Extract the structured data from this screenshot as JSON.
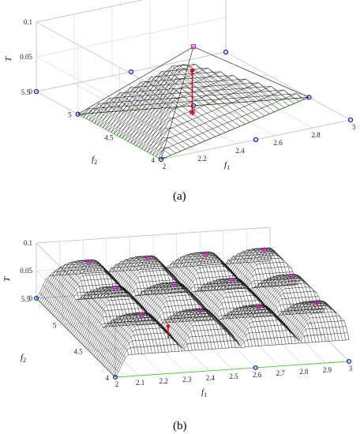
{
  "chart_data": [
    {
      "type": "surface3d",
      "caption": "(a)",
      "xlabel": "f",
      "xlabel_sub": "1",
      "ylabel": "f",
      "ylabel_sub": "2",
      "zlabel": "T",
      "xlim": [
        2,
        3
      ],
      "ylim": [
        4,
        5.5
      ],
      "zlim": [
        0,
        0.1
      ],
      "xticks": [
        "2",
        "2.2",
        "2.4",
        "2.6",
        "2.8",
        "3"
      ],
      "yticks": [
        "4",
        "4.5",
        "5",
        "5.5"
      ],
      "zticks": [
        "0",
        "0.05",
        "0.1"
      ],
      "grid": true,
      "apex": {
        "f1": 2.5,
        "f2": 4.75,
        "T": 0.085
      },
      "base_triangle": [
        {
          "f1": 2.0,
          "f2": 5.0
        },
        {
          "f1": 2.0,
          "f2": 4.0
        },
        {
          "f1": 3.0,
          "f2": 4.5
        }
      ],
      "blue_points": [
        {
          "f1": 2.0,
          "f2": 5.5
        },
        {
          "f1": 2.0,
          "f2": 5.0
        },
        {
          "f1": 2.0,
          "f2": 4.0
        },
        {
          "f1": 2.5,
          "f2": 4.0
        },
        {
          "f1": 3.0,
          "f2": 4.0
        },
        {
          "f1": 3.0,
          "f2": 4.5
        },
        {
          "f1": 3.0,
          "f2": 5.5
        },
        {
          "f1": 2.5,
          "f2": 5.5
        },
        {
          "f1": 2.5,
          "f2": 4.75
        }
      ],
      "marked_point": {
        "f1": 2.45,
        "f2": 4.65,
        "T": 0.03
      }
    },
    {
      "type": "surface3d",
      "caption": "(b)",
      "xlabel": "f",
      "xlabel_sub": "1",
      "ylabel": "f",
      "ylabel_sub": "2",
      "zlabel": "T",
      "xlim": [
        2,
        3
      ],
      "ylim": [
        4,
        5.5
      ],
      "zlim": [
        0,
        0.1
      ],
      "xticks": [
        "2",
        "2.1",
        "2.2",
        "2.3",
        "2.4",
        "2.5",
        "2.6",
        "2.7",
        "2.8",
        "2.9",
        "3"
      ],
      "yticks": [
        "4",
        "4.5",
        "5",
        "5.5"
      ],
      "zticks": [
        "0",
        "0.05",
        "0.1"
      ],
      "grid": true,
      "peaks": [
        {
          "f1": 2.17,
          "f2": 4.25,
          "T": 0.085
        },
        {
          "f1": 2.42,
          "f2": 4.25,
          "T": 0.085
        },
        {
          "f1": 2.67,
          "f2": 4.25,
          "T": 0.085
        },
        {
          "f1": 2.92,
          "f2": 4.25,
          "T": 0.085
        },
        {
          "f1": 2.17,
          "f2": 4.75,
          "T": 0.085
        },
        {
          "f1": 2.42,
          "f2": 4.75,
          "T": 0.085
        },
        {
          "f1": 2.67,
          "f2": 4.75,
          "T": 0.085
        },
        {
          "f1": 2.92,
          "f2": 4.75,
          "T": 0.085
        },
        {
          "f1": 2.17,
          "f2": 5.25,
          "T": 0.085
        },
        {
          "f1": 2.42,
          "f2": 5.25,
          "T": 0.085
        },
        {
          "f1": 2.67,
          "f2": 5.25,
          "T": 0.085
        },
        {
          "f1": 2.92,
          "f2": 5.25,
          "T": 0.085
        }
      ],
      "marked_point": {
        "f1": 2.35,
        "f2": 4.55,
        "T": 0.03
      }
    }
  ]
}
